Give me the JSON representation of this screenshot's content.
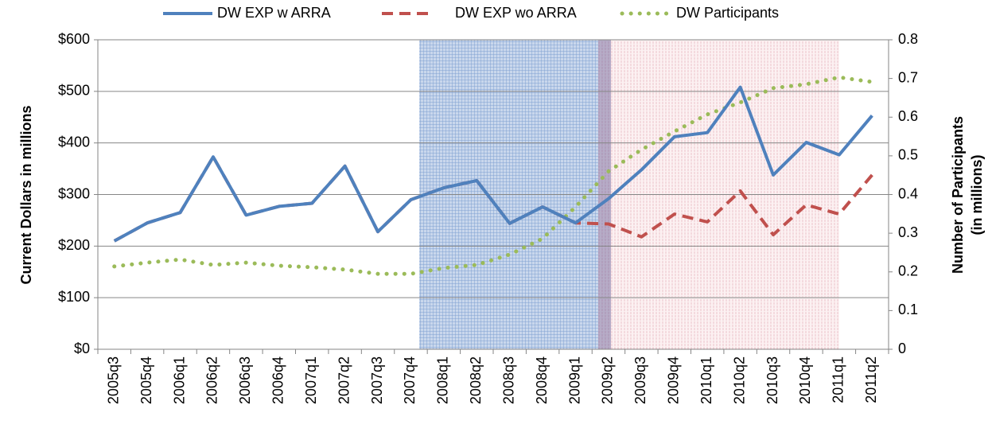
{
  "chart_data": {
    "type": "line",
    "y_label": "Current Dollars in millions",
    "y2_label": [
      "Number of Participants",
      "(in millions)"
    ],
    "categories": [
      "2005q3",
      "2005q4",
      "2006q1",
      "2006q2",
      "2006q3",
      "2006q4",
      "2007q1",
      "2007q2",
      "2007q3",
      "2007q4",
      "2008q1",
      "2008q2",
      "2008q3",
      "2008q4",
      "2009q1",
      "2009q2",
      "2009q3",
      "2009q4",
      "2010q1",
      "2010q2",
      "2010q3",
      "2010q4",
      "2011q1",
      "2011q2"
    ],
    "series": [
      {
        "name": "DW EXP w ARRA",
        "color": "#4f81bd",
        "dash": "solid",
        "axis": "y",
        "values": [
          210,
          245,
          265,
          373,
          260,
          277,
          283,
          355,
          228,
          290,
          313,
          327,
          244,
          276,
          245,
          292,
          348,
          412,
          420,
          508,
          338,
          401,
          377,
          453
        ]
      },
      {
        "name": "DW EXP wo ARRA",
        "color": "#c0504d",
        "dash": "dashed",
        "axis": "y",
        "values": [
          210,
          245,
          265,
          373,
          260,
          277,
          283,
          355,
          228,
          290,
          313,
          327,
          244,
          276,
          245,
          243,
          218,
          262,
          247,
          307,
          222,
          280,
          262,
          338
        ]
      },
      {
        "name": "DW Participants",
        "color": "#9bbb59",
        "dash": "dotted",
        "axis": "y2",
        "values": [
          0.214,
          0.224,
          0.232,
          0.218,
          0.224,
          0.216,
          0.212,
          0.206,
          0.195,
          0.195,
          0.21,
          0.218,
          0.245,
          0.286,
          0.368,
          0.46,
          0.516,
          0.563,
          0.607,
          0.638,
          0.675,
          0.685,
          0.703,
          0.691
        ]
      }
    ],
    "ylim": [
      0,
      600
    ],
    "yticks": [
      {
        "value": 0,
        "label": "$0"
      },
      {
        "value": 100,
        "label": "$100"
      },
      {
        "value": 200,
        "label": "$200"
      },
      {
        "value": 300,
        "label": "$300"
      },
      {
        "value": 400,
        "label": "$400"
      },
      {
        "value": 500,
        "label": "$500"
      },
      {
        "value": 600,
        "label": "$600"
      }
    ],
    "y2lim": [
      0,
      0.8
    ],
    "y2ticks": [
      0,
      0.1,
      0.2,
      0.3,
      0.4,
      0.5,
      0.6,
      0.7,
      0.8
    ],
    "grid": true,
    "legend": "top"
  }
}
